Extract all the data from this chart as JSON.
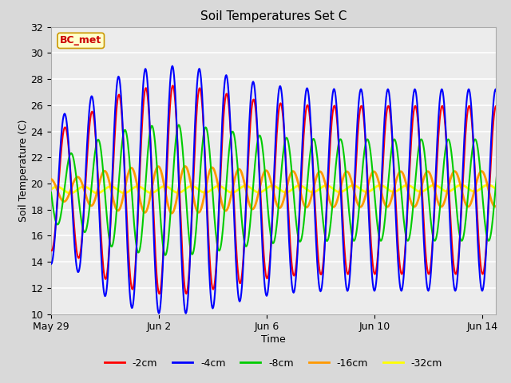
{
  "title": "Soil Temperatures Set C",
  "xlabel": "Time",
  "ylabel": "Soil Temperature (C)",
  "ylim": [
    10,
    32
  ],
  "yticks": [
    10,
    12,
    14,
    16,
    18,
    20,
    22,
    24,
    26,
    28,
    30,
    32
  ],
  "fig_bg_color": "#d9d9d9",
  "plot_bg_color": "#ececec",
  "line_colors": {
    "-2cm": "#ff0000",
    "-4cm": "#0000ff",
    "-8cm": "#00cc00",
    "-16cm": "#ff9900",
    "-32cm": "#ffff00"
  },
  "line_widths": {
    "-2cm": 1.5,
    "-4cm": 1.5,
    "-8cm": 1.5,
    "-16cm": 2.0,
    "-32cm": 2.0
  },
  "label_box": {
    "text": "BC_met",
    "bg": "#ffffcc",
    "border": "#cc9900",
    "text_color": "#cc0000",
    "fontsize": 9,
    "fontweight": "bold"
  },
  "xtick_dates": [
    "May 29",
    "Jun 2",
    "Jun 6",
    "Jun 10",
    "Jun 14"
  ],
  "xtick_positions": [
    0,
    4,
    8,
    12,
    16
  ]
}
